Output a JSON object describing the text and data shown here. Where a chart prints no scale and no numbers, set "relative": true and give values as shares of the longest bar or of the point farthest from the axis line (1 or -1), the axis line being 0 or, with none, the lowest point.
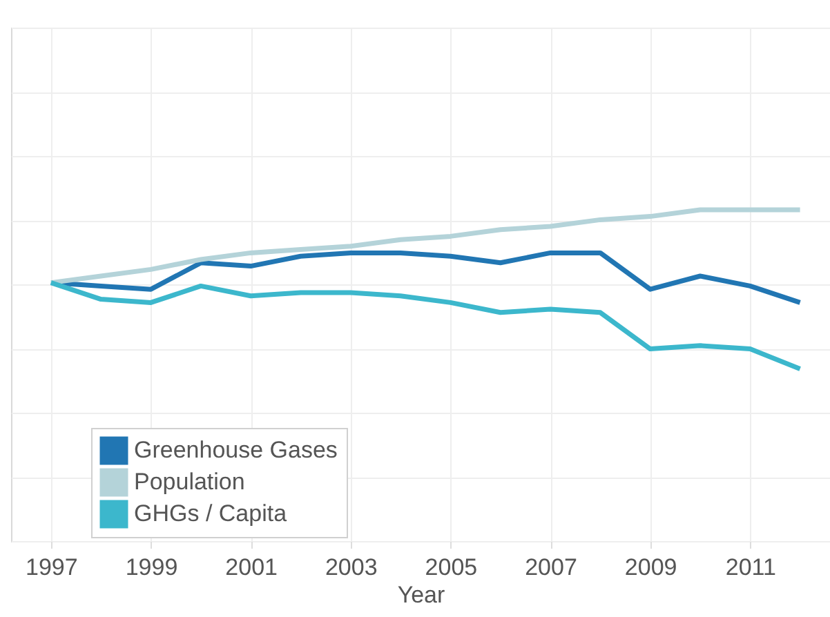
{
  "chart_data": {
    "type": "line",
    "relative": true,
    "xlabel": "Year",
    "x": [
      1997,
      1998,
      1999,
      2000,
      2001,
      2002,
      2003,
      2004,
      2005,
      2006,
      2007,
      2008,
      2009,
      2010,
      2011,
      2012
    ],
    "xlim": [
      1996.2,
      2012.6
    ],
    "xticks": [
      1997,
      1999,
      2001,
      2003,
      2005,
      2007,
      2009,
      2011
    ],
    "grid": true,
    "legend": "bottom left",
    "series": [
      {
        "name": "Greenhouse Gases",
        "color": "#2176b3",
        "values": [
          0.78,
          0.77,
          0.76,
          0.84,
          0.83,
          0.86,
          0.87,
          0.87,
          0.86,
          0.84,
          0.87,
          0.87,
          0.76,
          0.8,
          0.77,
          0.72
        ]
      },
      {
        "name": "Population",
        "color": "#b4d3d9",
        "values": [
          0.78,
          0.8,
          0.82,
          0.85,
          0.87,
          0.88,
          0.89,
          0.91,
          0.92,
          0.94,
          0.95,
          0.97,
          0.98,
          1.0,
          1.0,
          1.0
        ]
      },
      {
        "name": "GHGs / Capita",
        "color": "#3cb7cc",
        "values": [
          0.78,
          0.73,
          0.72,
          0.77,
          0.74,
          0.75,
          0.75,
          0.74,
          0.72,
          0.69,
          0.7,
          0.69,
          0.58,
          0.59,
          0.58,
          0.52
        ]
      }
    ]
  }
}
